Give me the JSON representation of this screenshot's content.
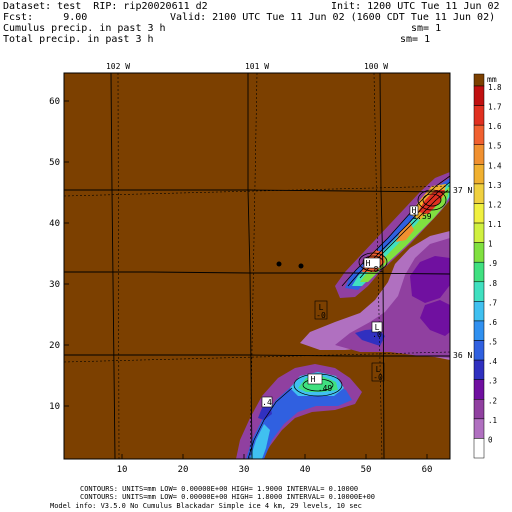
{
  "header": {
    "dataset_line": "Dataset: test  RIP: rip20020611 d2",
    "init_line": "Init: 1200 UTC Tue 11 Jun 02",
    "fcst_line": "Fcst:     9.00",
    "valid_line": "Valid: 2100 UTC Tue 11 Jun 02 (1600 CDT Tue 11 Jun 02)",
    "field1_line": "Cumulus precip. in past 3 h",
    "sm1": "sm= 1",
    "field2_line": "Total precip. in past 3 h",
    "sm2": "sm= 1"
  },
  "map": {
    "x_ticks": [
      "10",
      "20",
      "30",
      "40",
      "50",
      "60"
    ],
    "y_ticks": [
      "10",
      "20",
      "30",
      "40",
      "50",
      "60"
    ],
    "lon_labels": [
      "102 W",
      "101 W",
      "100 W"
    ],
    "lat_labels": [
      "37 N",
      "36 N"
    ],
    "markers": [
      {
        "type": "H",
        "value": "1.59"
      },
      {
        "type": "H",
        "value": ".81"
      },
      {
        "type": "L",
        "value": "-0"
      },
      {
        "type": "L",
        "value": ".0"
      },
      {
        "type": "H",
        "value": ".49"
      },
      {
        "type": "L",
        "value": "-0"
      },
      {
        "type": "L",
        "value": ".4"
      }
    ]
  },
  "colorbar": {
    "unit": "mm",
    "labels": [
      "1.8",
      "1.7",
      "1.6",
      "1.5",
      "1.4",
      "1.3",
      "1.2",
      "1.1",
      "1",
      ".9",
      ".8",
      ".7",
      ".6",
      ".5",
      ".4",
      ".3",
      ".2",
      ".1",
      "0"
    ],
    "colors": [
      "#ffffff",
      "#b070c0",
      "#9040a0",
      "#7010a0",
      "#3030c0",
      "#3060e0",
      "#3090f0",
      "#40c0f0",
      "#40e0c0",
      "#40e080",
      "#80e040",
      "#d0f040",
      "#f0f040",
      "#f0d040",
      "#f0b030",
      "#f09030",
      "#f06030",
      "#e03020",
      "#c01010"
    ],
    "background": "#7c4000"
  },
  "footer": {
    "line1": "CONTOURS:  UNITS=mm  LOW= 0.00000E+00  HIGH=  1.9000     INTERVAL=  0.10000",
    "line2": "CONTOURS:  UNITS=mm  LOW= 0.00000E+00  HIGH=  1.8000     INTERVAL=  0.10000E+00",
    "line3": "Model info: V3.5.0 No Cumulus Blackadar  Simple ice   4 km,  29 levels,  10 sec"
  }
}
